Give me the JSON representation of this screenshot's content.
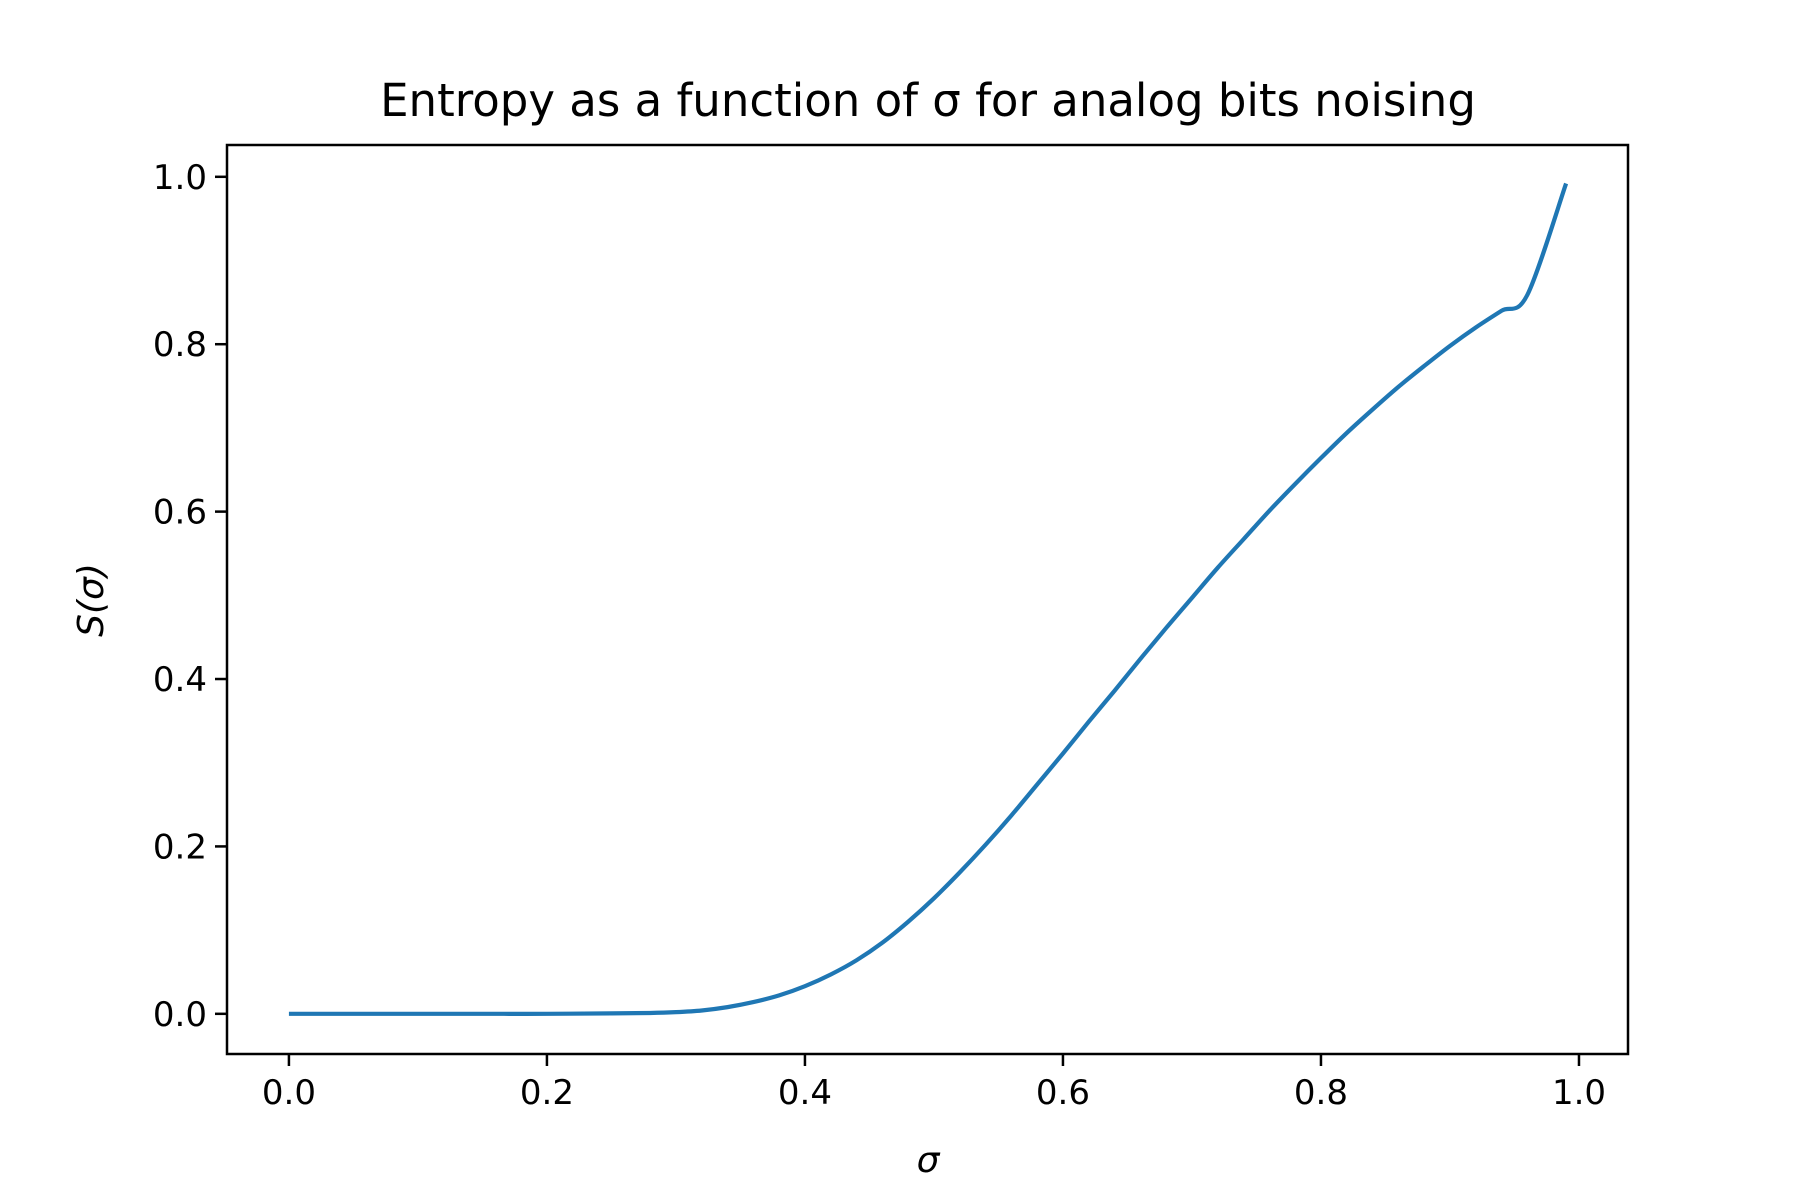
{
  "chart_data": {
    "type": "line",
    "title": "Entropy as a function of σ for analog bits noising",
    "xlabel": "σ",
    "ylabel": "S(σ)",
    "xlim": [
      -0.048,
      1.038
    ],
    "ylim": [
      -0.048,
      1.038
    ],
    "xticks": [
      0.0,
      0.2,
      0.4,
      0.6,
      0.8,
      1.0
    ],
    "xtick_labels": [
      "0.0",
      "0.2",
      "0.4",
      "0.6",
      "0.8",
      "1.0"
    ],
    "yticks": [
      0.0,
      0.2,
      0.4,
      0.6,
      0.8,
      1.0
    ],
    "ytick_labels": [
      "0.0",
      "0.2",
      "0.4",
      "0.6",
      "0.8",
      "1.0"
    ],
    "grid": false,
    "legend": "none",
    "series": [
      {
        "color": "#1f77b4",
        "x": [
          0.0,
          0.05,
          0.1,
          0.15,
          0.2,
          0.25,
          0.28,
          0.3,
          0.32,
          0.34,
          0.36,
          0.38,
          0.4,
          0.42,
          0.44,
          0.46,
          0.48,
          0.5,
          0.52,
          0.54,
          0.56,
          0.58,
          0.6,
          0.62,
          0.64,
          0.66,
          0.68,
          0.7,
          0.72,
          0.74,
          0.76,
          0.78,
          0.8,
          0.82,
          0.84,
          0.86,
          0.88,
          0.9,
          0.92,
          0.94,
          0.96,
          0.99
        ],
        "y": [
          0.0,
          0.0,
          0.0,
          0.0,
          0.0,
          0.0005,
          0.001,
          0.002,
          0.004,
          0.008,
          0.014,
          0.022,
          0.033,
          0.047,
          0.064,
          0.085,
          0.11,
          0.138,
          0.169,
          0.202,
          0.237,
          0.274,
          0.311,
          0.349,
          0.386,
          0.424,
          0.461,
          0.497,
          0.533,
          0.567,
          0.601,
          0.633,
          0.664,
          0.694,
          0.722,
          0.749,
          0.774,
          0.798,
          0.82,
          0.84,
          0.859,
          0.992
        ]
      }
    ]
  }
}
